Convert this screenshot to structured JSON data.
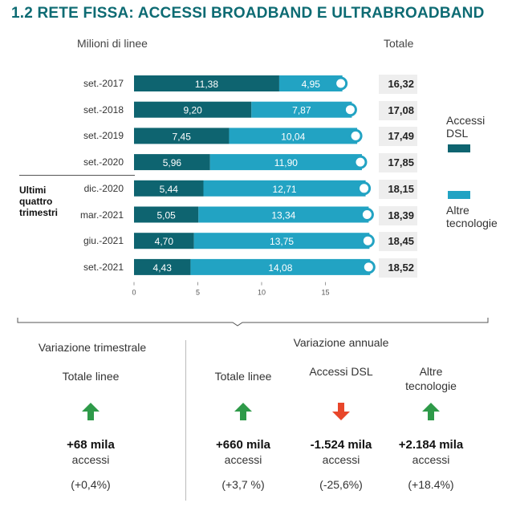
{
  "title": "1.2 RETE FISSA: ACCESSI BROADBAND E ULTRABROADBAND",
  "y_header": "Milioni di linee",
  "total_header": "Totale",
  "ultimi_label": [
    "Ultimi",
    "quattro",
    "trimestri"
  ],
  "colors": {
    "dsl": "#0e6470",
    "altre": "#22a3c3",
    "title": "#0d6b73",
    "up": "#2e9a49",
    "down": "#e8462a"
  },
  "legend": {
    "dsl": [
      "Accessi",
      "DSL"
    ],
    "altre": [
      "Altre",
      "tecnologie"
    ]
  },
  "chart_data": {
    "type": "bar",
    "orientation": "horizontal",
    "stacked": true,
    "categories": [
      "set.-2017",
      "set.-2018",
      "set.-2019",
      "set.-2020",
      "dic.-2020",
      "mar.-2021",
      "giu.-2021",
      "set.-2021"
    ],
    "series": [
      {
        "name": "Accessi DSL",
        "values": [
          11.38,
          9.2,
          7.45,
          5.96,
          5.44,
          5.05,
          4.7,
          4.43
        ],
        "labels": [
          "11,38",
          "9,20",
          "7,45",
          "5,96",
          "5,44",
          "5,05",
          "4,70",
          "4,43"
        ]
      },
      {
        "name": "Altre tecnologie",
        "values": [
          4.95,
          7.87,
          10.04,
          11.9,
          12.71,
          13.34,
          13.75,
          14.08
        ],
        "labels": [
          "4,95",
          "7,87",
          "10,04",
          "11,90",
          "12,71",
          "13,34",
          "13,75",
          "14,08"
        ]
      }
    ],
    "totals": [
      "16,32",
      "17,08",
      "17,49",
      "17,85",
      "18,15",
      "18,39",
      "18,45",
      "18,52"
    ],
    "xlim": [
      0,
      18.7
    ],
    "x_ticks": [
      0,
      5,
      10,
      15
    ],
    "x_tick_labels": [
      "0",
      "5",
      "10",
      "15"
    ],
    "ylabel": "Milioni di linee",
    "legend_position": "right"
  },
  "bottom": {
    "quarterly_title": "Variazione trimestrale",
    "annual_title": "Variazione annuale",
    "stats": [
      {
        "head": "Totale linee",
        "value": "+68 mila",
        "unit": "accessi",
        "pct": "(+0,4%)",
        "dir": "up"
      },
      {
        "head": "Totale linee",
        "value": "+660 mila",
        "unit": "accessi",
        "pct": "(+3,7 %)",
        "dir": "up"
      },
      {
        "head": "Accessi DSL",
        "value": "-1.524 mila",
        "unit": "accessi",
        "pct": "(-25,6%)",
        "dir": "down"
      },
      {
        "head": "Altre tecnologie",
        "value": "+2.184 mila",
        "unit": "accessi",
        "pct": "(+18.4%)",
        "dir": "up"
      }
    ]
  }
}
